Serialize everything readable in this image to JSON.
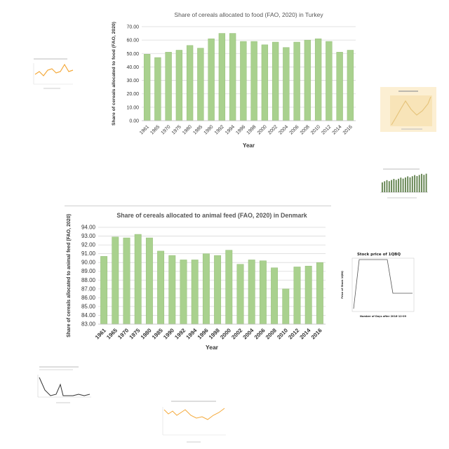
{
  "chart_data": [
    {
      "type": "bar",
      "title": "Share of cereals allocated to food (FAO, 2020)  in Turkey",
      "xlabel": "Year",
      "ylabel": "Share of cereals allocated to food (FAO, 2020)",
      "categories": [
        "1961",
        "1965",
        "1970",
        "1975",
        "1980",
        "1985",
        "1990",
        "1992",
        "1994",
        "1996",
        "1998",
        "2000",
        "2002",
        "2004",
        "2006",
        "2008",
        "2010",
        "2012",
        "2014",
        "2016"
      ],
      "values": [
        49.5,
        47,
        51,
        52.5,
        56,
        54,
        61,
        65,
        65,
        59,
        59,
        56.5,
        58.5,
        54.5,
        58.5,
        60,
        61,
        59,
        51,
        52.5
      ],
      "ylim": [
        0,
        70
      ],
      "yticks": [
        "0.00",
        "10.00",
        "20.00",
        "30.00",
        "40.00",
        "50.00",
        "60.00",
        "70.00"
      ],
      "grid": true,
      "color": "#a9d18e"
    },
    {
      "type": "bar",
      "title": "Share of cereals allocated to animal feed (FAO, 2020)  in Denmark",
      "xlabel": "Year",
      "ylabel": "Share of cereals allocated to animal feed (FAO, 2020)",
      "categories": [
        "1961",
        "1965",
        "1970",
        "1975",
        "1980",
        "1985",
        "1990",
        "1992",
        "1994",
        "1996",
        "1998",
        "2000",
        "2002",
        "2004",
        "2006",
        "2008",
        "2010",
        "2012",
        "2014",
        "2016"
      ],
      "values": [
        90.7,
        92.9,
        92.8,
        93.2,
        92.8,
        91.3,
        90.8,
        90.3,
        90.3,
        91,
        90.8,
        91.4,
        89.8,
        90.3,
        90.2,
        89.4,
        87,
        89.5,
        89.6,
        90
      ],
      "ylim": [
        83,
        94
      ],
      "yticks": [
        "83.00",
        "84.00",
        "85.00",
        "86.00",
        "87.00",
        "88.00",
        "89.00",
        "90.00",
        "91.00",
        "92.00",
        "93.00",
        "94.00"
      ],
      "grid": true,
      "color": "#a9d18e"
    }
  ],
  "thumbnails": {
    "stock_1qbq": {
      "title": "Stock price of 1QBQ",
      "xlabel": "Number of Days after 2016-12-09",
      "ylabel": "Price of Stock 1QBQ"
    }
  },
  "colors": {
    "bar_fill": "#a9d18e",
    "bar_edge": "#94bd78",
    "grid": "#d9d9d9",
    "orange_line": "#f4a93a",
    "dark_line": "#333333",
    "cream_bg": "#fcefd3"
  }
}
